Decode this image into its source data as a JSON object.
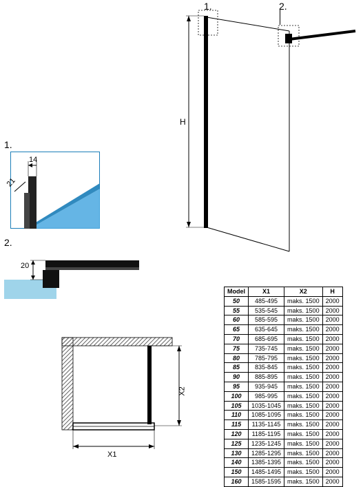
{
  "main": {
    "label_1": "1.",
    "label_2": "2.",
    "dimH": "H",
    "colors": {
      "line": "#000",
      "panelFill": "none",
      "panelStroke": "#000",
      "axis": "#000"
    }
  },
  "detail1": {
    "section_label": "1.",
    "dim14": "14",
    "dim21": "21",
    "colors": {
      "glass": "#4aa8e0",
      "glassDark": "#1a7db8",
      "frame": "#000",
      "border": "#1a7db8"
    }
  },
  "detail2": {
    "section_label": "2.",
    "dim20": "20",
    "colors": {
      "bar": "#000",
      "glass": "#9fd4ea"
    }
  },
  "plan": {
    "dimX1": "X1",
    "dimX2": "X2",
    "colors": {
      "hatch": "#666",
      "line": "#000"
    }
  },
  "table": {
    "headers": [
      "Model",
      "X1",
      "X2",
      "H"
    ],
    "rows": [
      [
        "50",
        "485-495",
        "maks. 1500",
        "2000"
      ],
      [
        "55",
        "535-545",
        "maks. 1500",
        "2000"
      ],
      [
        "60",
        "585-595",
        "maks. 1500",
        "2000"
      ],
      [
        "65",
        "635-645",
        "maks. 1500",
        "2000"
      ],
      [
        "70",
        "685-695",
        "maks. 1500",
        "2000"
      ],
      [
        "75",
        "735-745",
        "maks. 1500",
        "2000"
      ],
      [
        "80",
        "785-795",
        "maks. 1500",
        "2000"
      ],
      [
        "85",
        "835-845",
        "maks. 1500",
        "2000"
      ],
      [
        "90",
        "885-895",
        "maks. 1500",
        "2000"
      ],
      [
        "95",
        "935-945",
        "maks. 1500",
        "2000"
      ],
      [
        "100",
        "985-995",
        "maks. 1500",
        "2000"
      ],
      [
        "105",
        "1035-1045",
        "maks. 1500",
        "2000"
      ],
      [
        "110",
        "1085-1095",
        "maks. 1500",
        "2000"
      ],
      [
        "115",
        "1135-1145",
        "maks. 1500",
        "2000"
      ],
      [
        "120",
        "1185-1195",
        "maks. 1500",
        "2000"
      ],
      [
        "125",
        "1235-1245",
        "maks. 1500",
        "2000"
      ],
      [
        "130",
        "1285-1295",
        "maks. 1500",
        "2000"
      ],
      [
        "140",
        "1385-1395",
        "maks. 1500",
        "2000"
      ],
      [
        "150",
        "1485-1495",
        "maks. 1500",
        "2000"
      ],
      [
        "160",
        "1585-1595",
        "maks. 1500",
        "2000"
      ]
    ]
  }
}
